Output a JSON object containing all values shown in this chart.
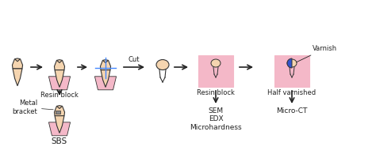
{
  "bg_color": "#ffffff",
  "pink_color": "#f4b8c8",
  "tooth_fill": "#f5d5b0",
  "tooth_outline": "#333333",
  "arrow_color": "#222222",
  "blue_color": "#3355cc",
  "text_color": "#222222",
  "font_size": 6,
  "labels": {
    "resin_block1": "Resin block",
    "resin_block2": "Resin block",
    "half_varnished": "Half varnished",
    "metal_bracket": "Metal\nbracket",
    "sbs": "SBS",
    "cut": "Cut",
    "sem": "SEM\nEDX\nMicrohardness",
    "micro_ct": "Micro-CT",
    "varnish": "Varnish"
  }
}
